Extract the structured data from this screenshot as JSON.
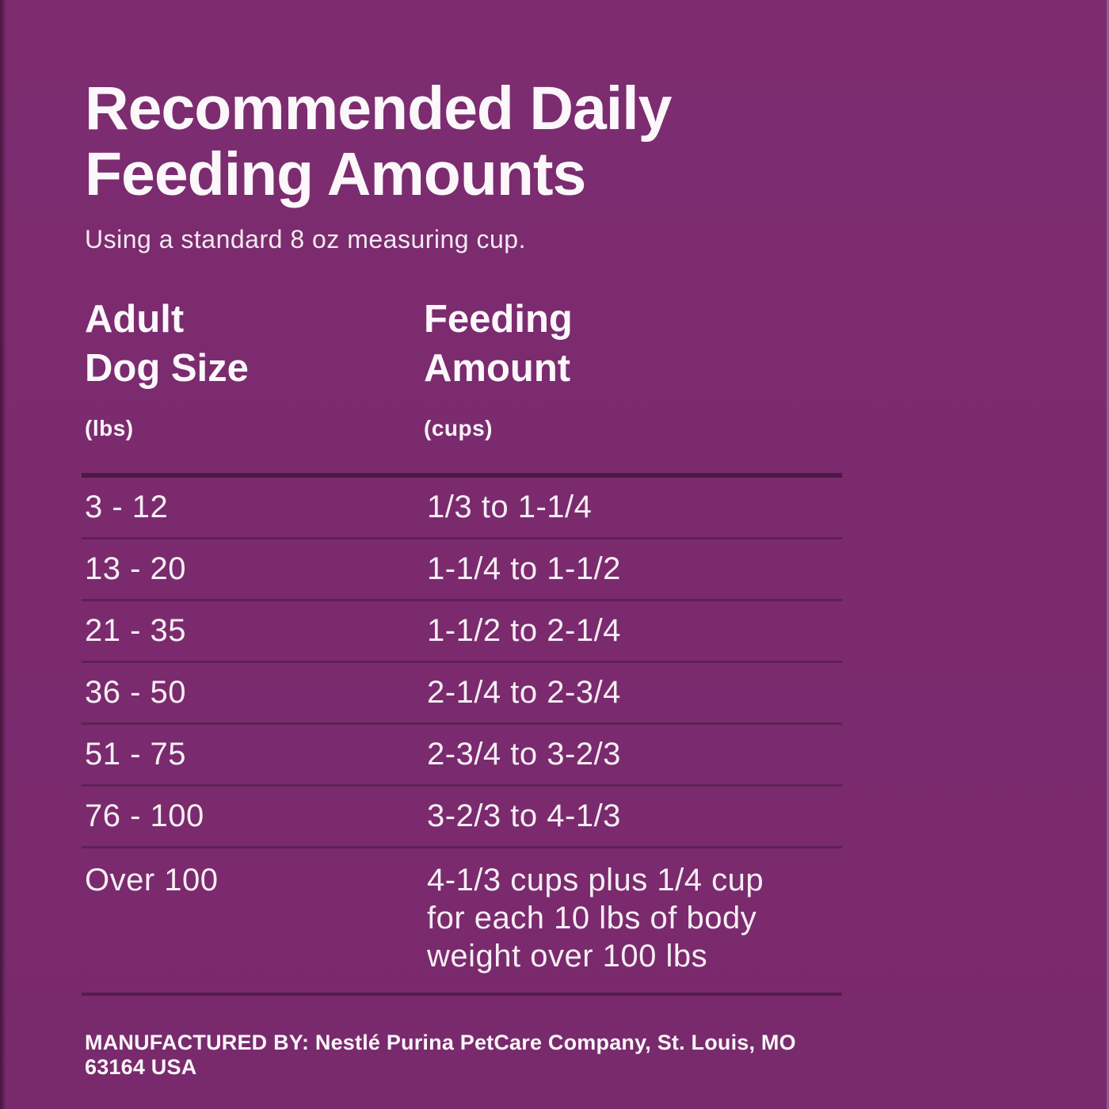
{
  "page": {
    "background_color": "#7b2a6e",
    "text_color": "#f9f3f8",
    "rule_thick_color": "#4b1945",
    "rule_thin_color": "#5c2155"
  },
  "header": {
    "title": "Recommended Daily\nFeeding Amounts",
    "subtitle": "Using a standard 8 oz measuring cup."
  },
  "table": {
    "columns": [
      {
        "label": "Adult\nDog Size",
        "unit": "(lbs)"
      },
      {
        "label": "Feeding\nAmount",
        "unit": "(cups)"
      }
    ],
    "rows": [
      {
        "size": "3 - 12",
        "amount": "1/3 to 1-1/4"
      },
      {
        "size": "13 - 20",
        "amount": "1-1/4 to 1-1/2"
      },
      {
        "size": "21 - 35",
        "amount": "1-1/2 to 2-1/4"
      },
      {
        "size": "36 - 50",
        "amount": "2-1/4 to 2-3/4"
      },
      {
        "size": "51 - 75",
        "amount": "2-3/4 to 3-2/3"
      },
      {
        "size": "76 - 100",
        "amount": "3-2/3 to 4-1/3"
      },
      {
        "size": "Over 100",
        "amount": "4-1/3 cups plus 1/4 cup\nfor each 10 lbs of body\nweight over 100 lbs"
      }
    ]
  },
  "footer": {
    "text": "MANUFACTURED BY: Nestlé Purina PetCare Company, St. Louis, MO 63164 USA"
  },
  "chart_data": {
    "type": "table",
    "title": "Recommended Daily Feeding Amounts",
    "subtitle": "Using a standard 8 oz measuring cup.",
    "columns": [
      "Adult Dog Size (lbs)",
      "Feeding Amount (cups)"
    ],
    "rows": [
      [
        "3 - 12",
        "1/3 to 1-1/4"
      ],
      [
        "13 - 20",
        "1-1/4 to 1-1/2"
      ],
      [
        "21 - 35",
        "1-1/2 to 2-1/4"
      ],
      [
        "36 - 50",
        "2-1/4 to 2-3/4"
      ],
      [
        "51 - 75",
        "2-3/4 to 3-2/3"
      ],
      [
        "76 - 100",
        "3-2/3 to 4-1/3"
      ],
      [
        "Over 100",
        "4-1/3 cups plus 1/4 cup for each 10 lbs of body weight over 100 lbs"
      ]
    ]
  }
}
